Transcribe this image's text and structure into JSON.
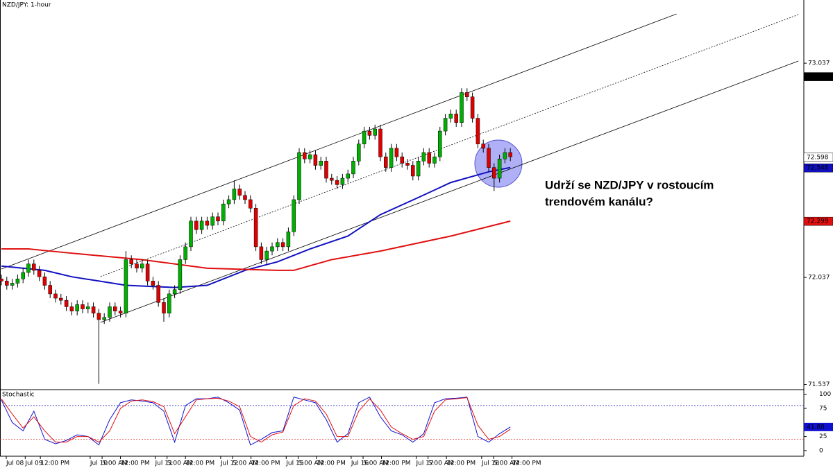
{
  "chart_data": [
    {
      "type": "candlestick",
      "title": "NZD/JPY: 1-hour",
      "annotation": [
        "Udrží se NZD/JPY v rostoucím",
        "trendovém kanálu?"
      ],
      "up_color": "#00b000",
      "down_color": "#e00000",
      "ylim": [
        71.513,
        73.332
      ],
      "yticks": [
        73.037,
        72.037,
        71.537
      ],
      "xlim": [
        0,
        147.5
      ],
      "xticks": [
        {
          "value": 0.9,
          "label": "Jul 08"
        },
        {
          "value": 4.4,
          "label": "Jul 09"
        },
        {
          "value": 7.2,
          "label": "12:00 PM"
        },
        {
          "value": 16.4,
          "label": "Jul 10"
        },
        {
          "value": 18.6,
          "label": "5:00 AM"
        },
        {
          "value": 22.0,
          "label": "12:00 PM"
        },
        {
          "value": 28.4,
          "label": "Jul 11"
        },
        {
          "value": 30.6,
          "label": "5:00 AM"
        },
        {
          "value": 34.0,
          "label": "12:00 PM"
        },
        {
          "value": 40.5,
          "label": "Jul 12"
        },
        {
          "value": 42.7,
          "label": "5:00 AM"
        },
        {
          "value": 46.1,
          "label": "12:00 PM"
        },
        {
          "value": 52.6,
          "label": "Jul 15"
        },
        {
          "value": 54.8,
          "label": "5:00 AM"
        },
        {
          "value": 58.2,
          "label": "12:00 PM"
        },
        {
          "value": 64.6,
          "label": "Jul 16"
        },
        {
          "value": 66.8,
          "label": "5:00 AM"
        },
        {
          "value": 70.2,
          "label": "12:00 PM"
        },
        {
          "value": 76.6,
          "label": "Jul 17"
        },
        {
          "value": 78.8,
          "label": "5:00 AM"
        },
        {
          "value": 82.2,
          "label": "12:00 PM"
        },
        {
          "value": 88.7,
          "label": "Jul 18"
        },
        {
          "value": 90.9,
          "label": "5:00 AM"
        },
        {
          "value": 94.3,
          "label": "12:00 PM"
        }
      ],
      "ohlc": [
        [
          72.03,
          72.05,
          72.0,
          72.02
        ],
        [
          72.02,
          72.04,
          71.98,
          72.0
        ],
        [
          72.0,
          72.03,
          71.98,
          72.01
        ],
        [
          72.01,
          72.05,
          71.99,
          72.03
        ],
        [
          72.03,
          72.08,
          72.01,
          72.06
        ],
        [
          72.06,
          72.12,
          72.04,
          72.1
        ],
        [
          72.1,
          72.12,
          72.05,
          72.07
        ],
        [
          72.07,
          72.09,
          72.02,
          72.04
        ],
        [
          72.04,
          72.06,
          71.98,
          72.0
        ],
        [
          72.0,
          72.02,
          71.94,
          71.96
        ],
        [
          71.96,
          71.98,
          71.92,
          71.94
        ],
        [
          71.94,
          71.96,
          71.91,
          71.93
        ],
        [
          71.93,
          71.95,
          71.88,
          71.9
        ],
        [
          71.9,
          71.92,
          71.86,
          71.88
        ],
        [
          71.88,
          71.93,
          71.86,
          71.91
        ],
        [
          71.91,
          71.93,
          71.87,
          71.89
        ],
        [
          71.89,
          71.92,
          71.87,
          71.9
        ],
        [
          71.9,
          71.92,
          71.85,
          71.87
        ],
        [
          71.87,
          71.89,
          71.54,
          71.84
        ],
        [
          71.84,
          71.87,
          71.82,
          71.85
        ],
        [
          71.85,
          71.92,
          71.83,
          71.9
        ],
        [
          71.9,
          71.92,
          71.86,
          71.88
        ],
        [
          71.88,
          71.9,
          71.85,
          71.87
        ],
        [
          71.87,
          72.16,
          71.85,
          72.12
        ],
        [
          72.12,
          72.14,
          72.08,
          72.1
        ],
        [
          72.1,
          72.12,
          72.06,
          72.08
        ],
        [
          72.08,
          72.12,
          72.06,
          72.1
        ],
        [
          72.1,
          72.12,
          72.0,
          72.02
        ],
        [
          72.02,
          72.04,
          71.98,
          72.0
        ],
        [
          72.0,
          72.02,
          71.9,
          71.92
        ],
        [
          71.92,
          71.94,
          71.83,
          71.87
        ],
        [
          71.87,
          71.98,
          71.85,
          71.96
        ],
        [
          71.96,
          72.0,
          71.94,
          71.98
        ],
        [
          71.98,
          72.14,
          71.96,
          72.12
        ],
        [
          72.12,
          72.2,
          72.1,
          72.18
        ],
        [
          72.18,
          72.32,
          72.16,
          72.3
        ],
        [
          72.3,
          72.32,
          72.24,
          72.26
        ],
        [
          72.26,
          72.32,
          72.24,
          72.3
        ],
        [
          72.3,
          72.32,
          72.26,
          72.28
        ],
        [
          72.28,
          72.34,
          72.26,
          72.32
        ],
        [
          72.32,
          72.34,
          72.28,
          72.3
        ],
        [
          72.3,
          72.4,
          72.28,
          72.38
        ],
        [
          72.38,
          72.42,
          72.36,
          72.4
        ],
        [
          72.4,
          72.49,
          72.38,
          72.45
        ],
        [
          72.45,
          72.47,
          72.4,
          72.42
        ],
        [
          72.42,
          72.44,
          72.38,
          72.4
        ],
        [
          72.4,
          72.42,
          72.34,
          72.36
        ],
        [
          72.36,
          72.38,
          72.16,
          72.18
        ],
        [
          72.18,
          72.2,
          72.1,
          72.12
        ],
        [
          72.12,
          72.18,
          72.1,
          72.16
        ],
        [
          72.16,
          72.2,
          72.14,
          72.18
        ],
        [
          72.18,
          72.22,
          72.16,
          72.2
        ],
        [
          72.2,
          72.22,
          72.16,
          72.18
        ],
        [
          72.18,
          72.27,
          72.16,
          72.25
        ],
        [
          72.25,
          72.42,
          72.23,
          72.4
        ],
        [
          72.4,
          72.64,
          72.38,
          72.62
        ],
        [
          72.62,
          72.64,
          72.57,
          72.59
        ],
        [
          72.59,
          72.63,
          72.57,
          72.61
        ],
        [
          72.61,
          72.63,
          72.54,
          72.56
        ],
        [
          72.56,
          72.6,
          72.54,
          72.58
        ],
        [
          72.58,
          72.6,
          72.48,
          72.5
        ],
        [
          72.5,
          72.52,
          72.47,
          72.49
        ],
        [
          72.49,
          72.51,
          72.45,
          72.47
        ],
        [
          72.47,
          72.52,
          72.45,
          72.5
        ],
        [
          72.5,
          72.54,
          72.48,
          72.52
        ],
        [
          72.52,
          72.6,
          72.5,
          72.58
        ],
        [
          72.58,
          72.68,
          72.56,
          72.66
        ],
        [
          72.66,
          72.74,
          72.64,
          72.72
        ],
        [
          72.72,
          72.74,
          72.68,
          72.7
        ],
        [
          72.7,
          72.75,
          72.68,
          72.73
        ],
        [
          72.73,
          72.75,
          72.58,
          72.6
        ],
        [
          72.6,
          72.62,
          72.53,
          72.55
        ],
        [
          72.55,
          72.66,
          72.53,
          72.64
        ],
        [
          72.64,
          72.66,
          72.58,
          72.6
        ],
        [
          72.6,
          72.62,
          72.55,
          72.57
        ],
        [
          72.57,
          72.59,
          72.54,
          72.56
        ],
        [
          72.56,
          72.58,
          72.49,
          72.51
        ],
        [
          72.51,
          72.6,
          72.49,
          72.58
        ],
        [
          72.58,
          72.64,
          72.56,
          72.62
        ],
        [
          72.62,
          72.64,
          72.55,
          72.57
        ],
        [
          72.57,
          72.62,
          72.55,
          72.6
        ],
        [
          72.6,
          72.74,
          72.58,
          72.72
        ],
        [
          72.72,
          72.8,
          72.7,
          72.78
        ],
        [
          72.78,
          72.82,
          72.76,
          72.8
        ],
        [
          72.8,
          72.82,
          72.74,
          72.76
        ],
        [
          72.76,
          72.92,
          72.74,
          72.9
        ],
        [
          72.9,
          72.92,
          72.86,
          72.88
        ],
        [
          72.88,
          72.9,
          72.76,
          72.78
        ],
        [
          72.78,
          72.8,
          72.64,
          72.66
        ],
        [
          72.66,
          72.68,
          72.62,
          72.64
        ],
        [
          72.64,
          72.66,
          72.53,
          72.55
        ],
        [
          72.55,
          72.57,
          72.44,
          72.5
        ],
        [
          72.5,
          72.61,
          72.48,
          72.59
        ],
        [
          72.59,
          72.64,
          72.57,
          72.62
        ],
        [
          72.62,
          72.64,
          72.58,
          72.6
        ]
      ],
      "ma": [
        {
          "color": "#1010c0",
          "x": [
            0,
            8,
            13,
            23,
            32,
            38,
            45,
            51,
            57,
            64,
            70,
            77,
            83,
            90,
            94
          ],
          "values": [
            72.09,
            72.07,
            72.04,
            72.0,
            71.99,
            72.0,
            72.07,
            72.11,
            72.17,
            72.23,
            72.33,
            72.41,
            72.48,
            72.53,
            72.55
          ]
        },
        {
          "color": "#e01010",
          "x": [
            0,
            5,
            13,
            26,
            38,
            51,
            54,
            61,
            70,
            83,
            94
          ],
          "values": [
            72.17,
            72.17,
            72.15,
            72.12,
            72.08,
            72.07,
            72.07,
            72.12,
            72.16,
            72.23,
            72.3
          ]
        }
      ],
      "trendlines": [
        {
          "x": [
            0,
            124.7
          ],
          "values": [
            72.076,
            73.267
          ],
          "dashed": false
        },
        {
          "x": [
            18.3,
            147.2
          ],
          "values": [
            72.041,
            73.264
          ],
          "dashed": true
        },
        {
          "x": [
            18.3,
            147.2
          ],
          "values": [
            71.827,
            73.047
          ],
          "dashed": false
        }
      ],
      "price_markers": [
        {
          "value": 72.974,
          "color": "#000000",
          "text_color": "#ffffff"
        },
        {
          "value": 72.598,
          "color": "#ffffff",
          "text_color": "#000000"
        },
        {
          "value": 72.548,
          "color": "#1010c0",
          "text_color": "#ffffff"
        },
        {
          "value": 72.299,
          "color": "#e01010",
          "text_color": "#ffffff"
        }
      ]
    },
    {
      "type": "line",
      "title": "Stochastic",
      "ylim": [
        -10,
        107
      ],
      "yticks": [
        0,
        25,
        75,
        100
      ],
      "levels": [
        {
          "value": 80,
          "color": "#3030c0"
        },
        {
          "value": 20,
          "color": "#e02020"
        }
      ],
      "x": [
        0,
        2,
        4,
        6,
        8,
        10,
        12,
        14,
        16,
        18,
        20,
        22,
        24,
        26,
        28,
        30,
        32,
        34,
        36,
        38,
        40,
        42,
        44,
        46,
        48,
        50,
        52,
        54,
        56,
        58,
        60,
        62,
        64,
        66,
        68,
        70,
        72,
        74,
        76,
        78,
        80,
        82,
        84,
        86,
        88,
        90,
        92,
        94
      ],
      "series": [
        {
          "color": "#1010d0",
          "values": [
            90,
            50,
            35,
            70,
            20,
            12,
            18,
            28,
            25,
            10,
            55,
            85,
            90,
            88,
            85,
            70,
            15,
            80,
            92,
            92,
            95,
            85,
            72,
            10,
            20,
            32,
            35,
            95,
            90,
            85,
            55,
            15,
            30,
            85,
            95,
            60,
            35,
            28,
            15,
            30,
            85,
            92,
            93,
            95,
            25,
            15,
            30,
            42
          ]
        },
        {
          "color": "#e01010",
          "values": [
            92,
            65,
            40,
            60,
            35,
            15,
            15,
            25,
            25,
            15,
            35,
            75,
            88,
            90,
            87,
            78,
            30,
            60,
            90,
            92,
            93,
            88,
            78,
            25,
            15,
            28,
            33,
            80,
            92,
            88,
            65,
            25,
            25,
            70,
            92,
            72,
            42,
            30,
            20,
            25,
            70,
            90,
            92,
            94,
            45,
            20,
            25,
            38
          ]
        }
      ],
      "marker": {
        "value": 41.88,
        "color": "#1010d0"
      }
    }
  ]
}
